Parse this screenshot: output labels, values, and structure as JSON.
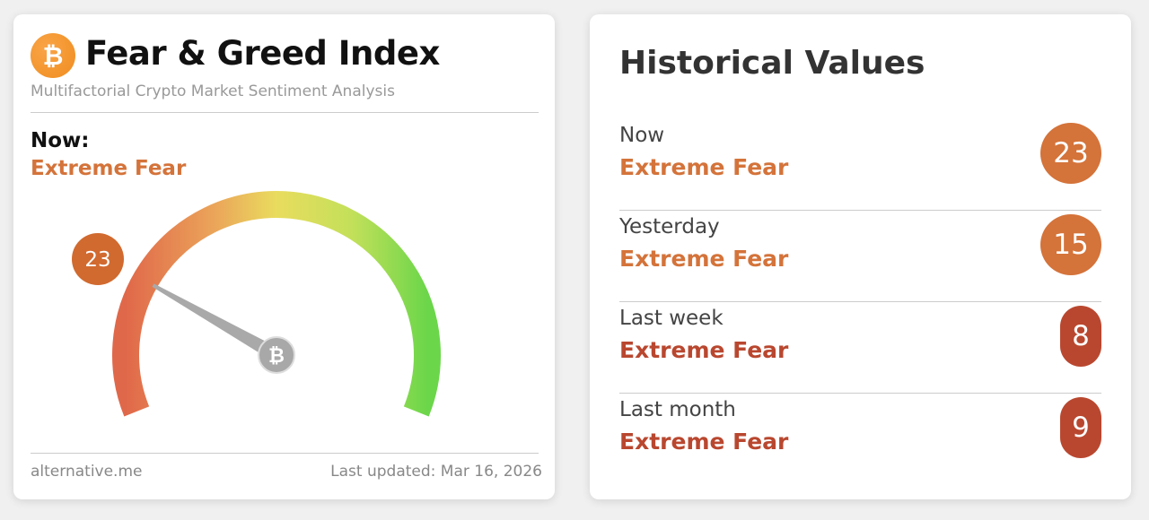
{
  "index_card": {
    "logo_icon": "bitcoin-icon",
    "title": "Fear & Greed Index",
    "subtitle": "Multifactorial Crypto Market Sentiment Analysis",
    "now_label": "Now:",
    "now_classification": "Extreme Fear",
    "gauge": {
      "value": 23,
      "min": 0,
      "max": 100,
      "value_label": "23",
      "needle_hub_icon": "bitcoin-icon"
    },
    "source": "alternative.me",
    "last_updated": "Last updated: Mar 16, 2026"
  },
  "historical": {
    "title": "Historical Values",
    "rows": [
      {
        "label": "Now",
        "classification": "Extreme Fear",
        "value": "23",
        "color": "#d4733a"
      },
      {
        "label": "Yesterday",
        "classification": "Extreme Fear",
        "value": "15",
        "color": "#d4733a"
      },
      {
        "label": "Last week",
        "classification": "Extreme Fear",
        "value": "8",
        "color": "#b9472f"
      },
      {
        "label": "Last month",
        "classification": "Extreme Fear",
        "value": "9",
        "color": "#b9472f"
      }
    ]
  }
}
